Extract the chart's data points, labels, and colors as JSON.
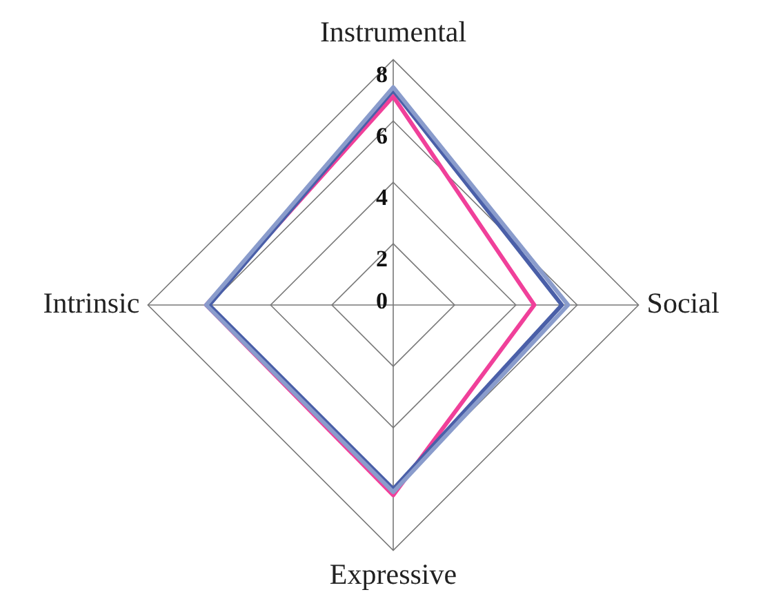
{
  "chart_data": {
    "type": "radar",
    "categories": [
      "Instrumental",
      "Social",
      "Expressive",
      "Intrinsic"
    ],
    "series": [
      {
        "color": "#8a9ccc",
        "values": [
          7.1,
          5.7,
          6.1,
          6.1
        ]
      },
      {
        "color": "#4a5fa8",
        "values": [
          7.0,
          5.5,
          6.0,
          6.0
        ]
      },
      {
        "color": "#f0409a",
        "values": [
          6.8,
          4.6,
          6.2,
          6.1
        ]
      }
    ],
    "ylim": [
      0,
      8
    ],
    "yticks": [
      0,
      2,
      4,
      6,
      8
    ],
    "grid": true,
    "legend": false,
    "marker": "none",
    "line_style": "solid"
  }
}
